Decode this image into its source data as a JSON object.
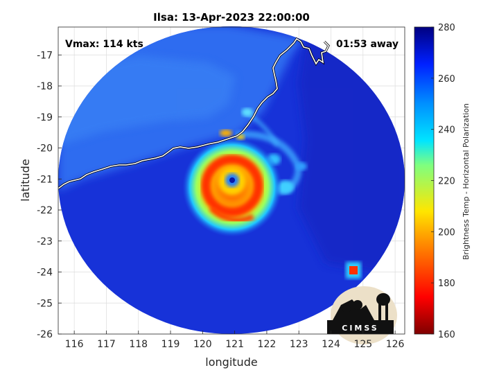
{
  "title": "Ilsa: 13-Apr-2023 22:00:00",
  "annotations": {
    "vmax": "Vmax: 114 kts",
    "away": "01:53 away"
  },
  "axes": {
    "xlabel": "longitude",
    "ylabel": "latitude",
    "xlim": [
      115.5,
      126.3
    ],
    "ylim": [
      -26,
      -16.1
    ],
    "xticks": [
      "116",
      "117",
      "118",
      "119",
      "120",
      "121",
      "122",
      "123",
      "124",
      "125",
      "126"
    ],
    "yticks": [
      "-17",
      "-18",
      "-19",
      "-20",
      "-21",
      "-22",
      "-23",
      "-24",
      "-25",
      "-26"
    ],
    "grid": true
  },
  "colorbar": {
    "label": "Brightness Temp - Horizontal Polarization",
    "ticks": [
      "280",
      "260",
      "240",
      "220",
      "200",
      "180",
      "160"
    ],
    "range": [
      160,
      280
    ]
  },
  "logo": {
    "text": "CIMSS"
  },
  "chart_data": {
    "type": "heatmap",
    "storm_center": {
      "lon": 121.0,
      "lat": -21.0
    },
    "swath_center": {
      "lon": 120.8,
      "lat": -21.0
    },
    "colormap": "jet",
    "value_range": [
      160,
      280
    ]
  },
  "colors": {
    "background_field": "#1a3fd6",
    "coastline": "#ffffff"
  }
}
